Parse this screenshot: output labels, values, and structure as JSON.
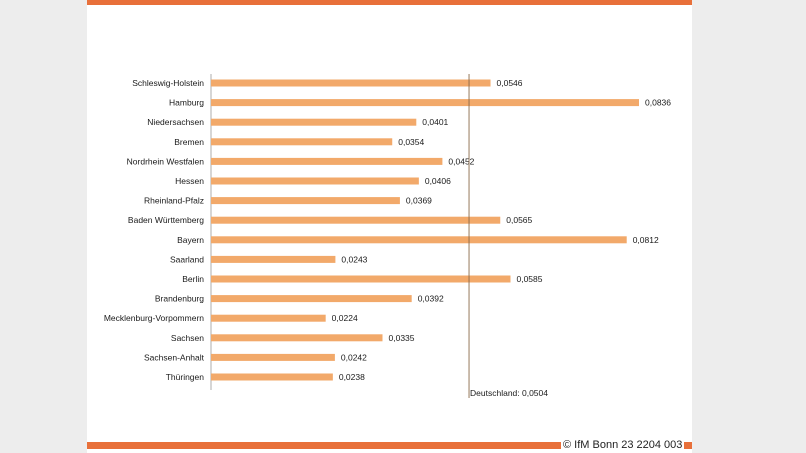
{
  "colors": {
    "bar": "#f2a96a",
    "accent": "#e8703a",
    "reference_line": "#8a6a4a",
    "axis": "#999999"
  },
  "chart_data": {
    "type": "bar",
    "orientation": "horizontal",
    "categories": [
      "Schleswig-Holstein",
      "Hamburg",
      "Niedersachsen",
      "Bremen",
      "Nordrhein Westfalen",
      "Hessen",
      "Rheinland-Pfalz",
      "Baden Württemberg",
      "Bayern",
      "Saarland",
      "Berlin",
      "Brandenburg",
      "Mecklenburg-Vorpommern",
      "Sachsen",
      "Sachsen-Anhalt",
      "Thüringen"
    ],
    "values": [
      0.0546,
      0.0836,
      0.0401,
      0.0354,
      0.0452,
      0.0406,
      0.0369,
      0.0565,
      0.0812,
      0.0243,
      0.0585,
      0.0392,
      0.0224,
      0.0335,
      0.0242,
      0.0238
    ],
    "value_labels": [
      "0,0546",
      "0,0836",
      "0,0401",
      "0,0354",
      "0,0452",
      "0,0406",
      "0,0369",
      "0,0565",
      "0,0812",
      "0,0243",
      "0,0585",
      "0,0392",
      "0,0224",
      "0,0335",
      "0,0242",
      "0,0238"
    ],
    "reference": {
      "value": 0.0504,
      "label": "Deutschland:  0,0504"
    },
    "xlim": [
      0,
      0.0836
    ],
    "grid": false,
    "legend": "none"
  },
  "footer": {
    "copyright": "© IfM Bonn 23 2204 003"
  }
}
